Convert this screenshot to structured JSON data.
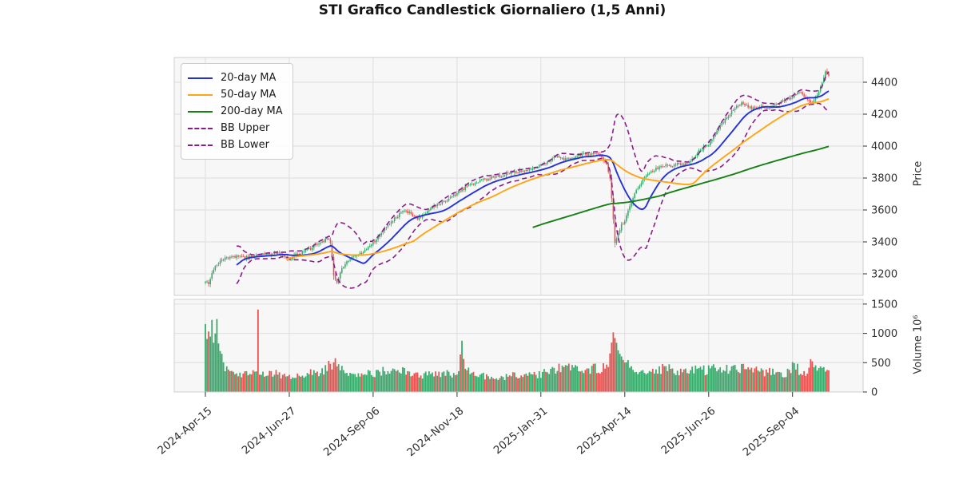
{
  "title": "STI Grafico Candlestick Giornaliero (1,5 Anni)",
  "legend": {
    "items": [
      {
        "label": "20-day MA",
        "color": "#2433d9",
        "dash": false
      },
      {
        "label": "50-day MA",
        "color": "#ffa413",
        "dash": false
      },
      {
        "label": "200-day MA",
        "color": "#168016",
        "dash": false
      },
      {
        "label": "BB Upper",
        "color": "#8a1c8a",
        "dash": true
      },
      {
        "label": "BB Lower",
        "color": "#8a1c8a",
        "dash": true
      }
    ]
  },
  "axes": {
    "price": {
      "label": "Price",
      "ticks": [
        3200,
        3400,
        3600,
        3800,
        4000,
        4200,
        4400
      ],
      "range": [
        3065,
        4555
      ]
    },
    "volume": {
      "label": "Volume  10⁶",
      "ticks": [
        0,
        500,
        1000,
        1500
      ],
      "range": [
        0,
        1580
      ]
    },
    "x": {
      "tick_labels": [
        "2024-Apr-15",
        "2024-Jun-27",
        "2024-Sep-06",
        "2024-Nov-18",
        "2025-Jan-31",
        "2025-Apr-14",
        "2025-Jun-26",
        "2025-Sep-04"
      ],
      "tick_days": [
        0,
        51,
        102,
        153,
        204,
        255,
        306,
        357
      ],
      "total_days": 380
    }
  },
  "chart_data": {
    "type": "candlestick",
    "title": "STI Grafico Candlestick Giornaliero (1,5 Anni)",
    "panels": [
      "price",
      "volume"
    ],
    "legend_position": "upper-left",
    "grid": true,
    "ylim_price": [
      3065,
      4555
    ],
    "ylim_volume_millions": [
      0,
      1580
    ],
    "overlays": [
      "20-day MA",
      "50-day MA",
      "200-day MA",
      "BB Upper (MA20+2σ)",
      "BB Lower (MA20-2σ)"
    ],
    "close_waypoints_day_price": [
      [
        0,
        3160
      ],
      [
        2,
        3130
      ],
      [
        5,
        3230
      ],
      [
        9,
        3280
      ],
      [
        14,
        3305
      ],
      [
        20,
        3310
      ],
      [
        26,
        3300
      ],
      [
        32,
        3325
      ],
      [
        38,
        3320
      ],
      [
        44,
        3330
      ],
      [
        48,
        3305
      ],
      [
        51,
        3290
      ],
      [
        55,
        3320
      ],
      [
        60,
        3340
      ],
      [
        65,
        3365
      ],
      [
        70,
        3395
      ],
      [
        74,
        3420
      ],
      [
        76,
        3400
      ],
      [
        78,
        3190
      ],
      [
        80,
        3140
      ],
      [
        83,
        3230
      ],
      [
        87,
        3285
      ],
      [
        92,
        3315
      ],
      [
        97,
        3345
      ],
      [
        102,
        3395
      ],
      [
        107,
        3455
      ],
      [
        112,
        3515
      ],
      [
        117,
        3565
      ],
      [
        121,
        3600
      ],
      [
        125,
        3575
      ],
      [
        129,
        3545
      ],
      [
        133,
        3575
      ],
      [
        138,
        3615
      ],
      [
        143,
        3645
      ],
      [
        148,
        3670
      ],
      [
        153,
        3705
      ],
      [
        158,
        3740
      ],
      [
        163,
        3765
      ],
      [
        168,
        3785
      ],
      [
        174,
        3800
      ],
      [
        180,
        3815
      ],
      [
        186,
        3835
      ],
      [
        192,
        3845
      ],
      [
        198,
        3860
      ],
      [
        204,
        3880
      ],
      [
        209,
        3910
      ],
      [
        214,
        3935
      ],
      [
        219,
        3915
      ],
      [
        224,
        3930
      ],
      [
        229,
        3950
      ],
      [
        233,
        3945
      ],
      [
        237,
        3955
      ],
      [
        241,
        3925
      ],
      [
        244,
        3885
      ],
      [
        246,
        3800
      ],
      [
        248,
        3550
      ],
      [
        249,
        3390
      ],
      [
        251,
        3460
      ],
      [
        253,
        3505
      ],
      [
        255,
        3525
      ],
      [
        257,
        3600
      ],
      [
        260,
        3680
      ],
      [
        263,
        3740
      ],
      [
        266,
        3790
      ],
      [
        270,
        3830
      ],
      [
        274,
        3860
      ],
      [
        278,
        3880
      ],
      [
        283,
        3870
      ],
      [
        288,
        3890
      ],
      [
        293,
        3885
      ],
      [
        298,
        3945
      ],
      [
        302,
        3985
      ],
      [
        306,
        4010
      ],
      [
        310,
        4080
      ],
      [
        314,
        4140
      ],
      [
        318,
        4190
      ],
      [
        322,
        4240
      ],
      [
        326,
        4265
      ],
      [
        330,
        4250
      ],
      [
        334,
        4230
      ],
      [
        338,
        4250
      ],
      [
        342,
        4240
      ],
      [
        346,
        4260
      ],
      [
        350,
        4280
      ],
      [
        354,
        4295
      ],
      [
        357,
        4315
      ],
      [
        360,
        4340
      ],
      [
        363,
        4330
      ],
      [
        366,
        4295
      ],
      [
        369,
        4275
      ],
      [
        372,
        4320
      ],
      [
        375,
        4400
      ],
      [
        377,
        4465
      ],
      [
        379,
        4440
      ]
    ],
    "volume_waypoints_day_millions": [
      [
        0,
        1150
      ],
      [
        1,
        900
      ],
      [
        2,
        1060
      ],
      [
        3,
        950
      ],
      [
        4,
        1230
      ],
      [
        5,
        860
      ],
      [
        6,
        1010
      ],
      [
        7,
        1260
      ],
      [
        8,
        820
      ],
      [
        9,
        700
      ],
      [
        10,
        580
      ],
      [
        12,
        420
      ],
      [
        15,
        310
      ],
      [
        20,
        280
      ],
      [
        25,
        300
      ],
      [
        31,
        330
      ],
      [
        32,
        1450
      ],
      [
        33,
        360
      ],
      [
        38,
        290
      ],
      [
        44,
        310
      ],
      [
        50,
        260
      ],
      [
        56,
        290
      ],
      [
        62,
        310
      ],
      [
        68,
        330
      ],
      [
        73,
        380
      ],
      [
        78,
        520
      ],
      [
        80,
        460
      ],
      [
        85,
        310
      ],
      [
        90,
        290
      ],
      [
        96,
        330
      ],
      [
        102,
        310
      ],
      [
        108,
        360
      ],
      [
        114,
        330
      ],
      [
        120,
        350
      ],
      [
        126,
        310
      ],
      [
        132,
        290
      ],
      [
        138,
        310
      ],
      [
        144,
        330
      ],
      [
        150,
        300
      ],
      [
        154,
        340
      ],
      [
        156,
        860
      ],
      [
        158,
        420
      ],
      [
        162,
        310
      ],
      [
        167,
        290
      ],
      [
        172,
        260
      ],
      [
        177,
        230
      ],
      [
        182,
        260
      ],
      [
        188,
        290
      ],
      [
        194,
        310
      ],
      [
        200,
        290
      ],
      [
        205,
        310
      ],
      [
        210,
        360
      ],
      [
        215,
        410
      ],
      [
        220,
        510
      ],
      [
        222,
        460
      ],
      [
        226,
        390
      ],
      [
        231,
        360
      ],
      [
        236,
        410
      ],
      [
        241,
        390
      ],
      [
        245,
        470
      ],
      [
        248,
        1010
      ],
      [
        250,
        820
      ],
      [
        252,
        620
      ],
      [
        255,
        470
      ],
      [
        260,
        410
      ],
      [
        265,
        360
      ],
      [
        270,
        390
      ],
      [
        275,
        360
      ],
      [
        280,
        410
      ],
      [
        285,
        360
      ],
      [
        290,
        330
      ],
      [
        295,
        360
      ],
      [
        300,
        390
      ],
      [
        305,
        360
      ],
      [
        310,
        410
      ],
      [
        315,
        390
      ],
      [
        320,
        360
      ],
      [
        325,
        410
      ],
      [
        330,
        390
      ],
      [
        335,
        360
      ],
      [
        340,
        330
      ],
      [
        345,
        360
      ],
      [
        350,
        310
      ],
      [
        355,
        330
      ],
      [
        358,
        510
      ],
      [
        361,
        360
      ],
      [
        365,
        310
      ],
      [
        368,
        460
      ],
      [
        370,
        410
      ],
      [
        372,
        430
      ],
      [
        375,
        390
      ],
      [
        377,
        360
      ],
      [
        379,
        310
      ]
    ],
    "colors": {
      "up": "#3aab6d",
      "down": "#e85452",
      "ma20": "#2433d9",
      "ma50": "#ffa413",
      "ma200": "#168016",
      "bb": "#8a1c8a",
      "grid": "#dedede",
      "panel_bg": "#f7f7f7",
      "spine": "#cfcfcf",
      "tick_text": "#303030",
      "title_text": "#141414"
    }
  }
}
